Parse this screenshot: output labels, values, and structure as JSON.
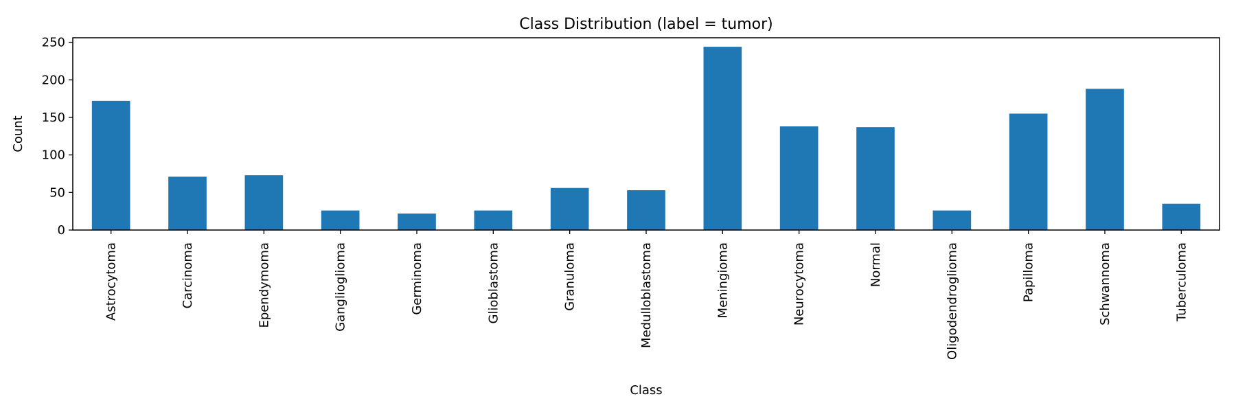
{
  "chart_data": {
    "type": "bar",
    "title": "Class Distribution (label = tumor)",
    "xlabel": "Class",
    "ylabel": "Count",
    "categories": [
      "Astrocytoma",
      "Carcinoma",
      "Ependymoma",
      "Ganglioglioma",
      "Germinoma",
      "Glioblastoma",
      "Granuloma",
      "Medulloblastoma",
      "Meningioma",
      "Neurocytoma",
      "Normal",
      "Oligodendroglioma",
      "Papilloma",
      "Schwannoma",
      "Tuberculoma"
    ],
    "values": [
      172,
      71,
      73,
      26,
      22,
      26,
      56,
      53,
      244,
      138,
      137,
      26,
      155,
      188,
      35
    ],
    "ylim": [
      0,
      256
    ],
    "yticks": [
      0,
      50,
      100,
      150,
      200,
      250
    ],
    "grid": false,
    "legend": "none",
    "bar_color": "#1f77b4"
  }
}
